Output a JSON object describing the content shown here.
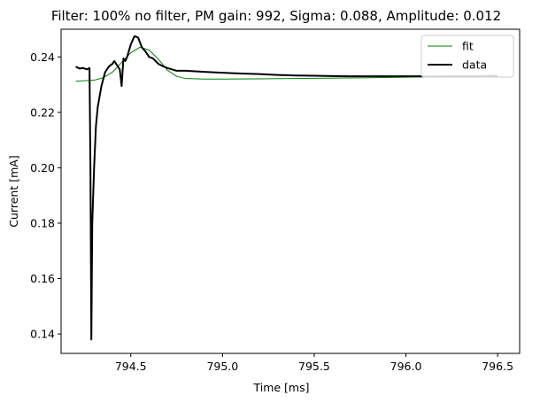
{
  "chart_data": {
    "type": "line",
    "title": "Filter: 100% no filter, PM gain: 992, Sigma: 0.088, Amplitude: 0.012",
    "xlabel": "Time [ms]",
    "ylabel": "Current [mA]",
    "xlim": [
      794.12,
      796.62
    ],
    "ylim": [
      0.133,
      0.25
    ],
    "xticks": [
      794.5,
      795.0,
      795.5,
      796.0,
      796.5
    ],
    "xtick_labels": [
      "794.5",
      "795.0",
      "795.5",
      "796.0",
      "796.5"
    ],
    "yticks": [
      0.14,
      0.16,
      0.18,
      0.2,
      0.22,
      0.24
    ],
    "ytick_labels": [
      "0.14",
      "0.16",
      "0.18",
      "0.20",
      "0.22",
      "0.24"
    ],
    "grid": false,
    "legend_position": "top-right",
    "series": [
      {
        "name": "fit",
        "color": "#008000",
        "x": [
          794.2,
          794.3,
          794.35,
          794.4,
          794.45,
          794.5,
          794.55,
          794.6,
          794.65,
          794.7,
          794.75,
          794.8,
          794.9,
          795.0,
          795.2,
          795.5,
          795.8,
          796.0,
          796.2,
          796.5
        ],
        "y": [
          0.2312,
          0.2316,
          0.2325,
          0.2345,
          0.238,
          0.2415,
          0.2435,
          0.2425,
          0.2392,
          0.2352,
          0.233,
          0.2322,
          0.232,
          0.232,
          0.2321,
          0.2323,
          0.2325,
          0.2327,
          0.2329,
          0.233
        ]
      },
      {
        "name": "data",
        "color": "#000000",
        "x": [
          794.2,
          794.22,
          794.24,
          794.26,
          794.275,
          794.28,
          794.285,
          794.29,
          794.3,
          794.31,
          794.32,
          794.34,
          794.36,
          794.38,
          794.4,
          794.41,
          794.42,
          794.43,
          794.44,
          794.45,
          794.46,
          794.47,
          794.48,
          794.5,
          794.52,
          794.54,
          794.56,
          794.58,
          794.6,
          794.62,
          794.65,
          794.68,
          794.7,
          794.75,
          794.8,
          794.85,
          794.9,
          795.0,
          795.1,
          795.2,
          795.3,
          795.4,
          795.5,
          795.6,
          795.7,
          795.8,
          795.9,
          796.0,
          796.1,
          796.2,
          796.3,
          796.4,
          796.5
        ],
        "y": [
          0.2365,
          0.2358,
          0.236,
          0.2355,
          0.236,
          0.2,
          0.138,
          0.18,
          0.2,
          0.215,
          0.222,
          0.2295,
          0.2345,
          0.2365,
          0.2375,
          0.2385,
          0.2375,
          0.2365,
          0.2355,
          0.2295,
          0.2395,
          0.2385,
          0.24,
          0.2445,
          0.2475,
          0.247,
          0.2435,
          0.242,
          0.24,
          0.2395,
          0.2375,
          0.2365,
          0.236,
          0.235,
          0.235,
          0.2348,
          0.2346,
          0.2343,
          0.234,
          0.2338,
          0.2335,
          0.2333,
          0.2332,
          0.2331,
          0.233,
          0.233,
          0.233,
          0.233,
          0.233,
          0.233,
          0.2331,
          0.2331,
          0.2332
        ]
      }
    ]
  }
}
